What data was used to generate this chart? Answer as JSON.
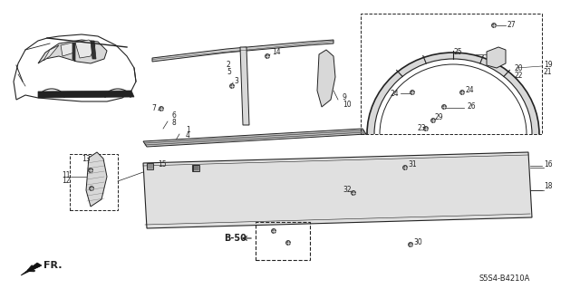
{
  "diagram_code": "S5S4-B4210A",
  "background": "#ffffff",
  "fr_label": "FR.",
  "b50_label": "B-50",
  "line_color": "#222222",
  "fill_light": "#d8d8d8",
  "fill_med": "#b8b8b8"
}
